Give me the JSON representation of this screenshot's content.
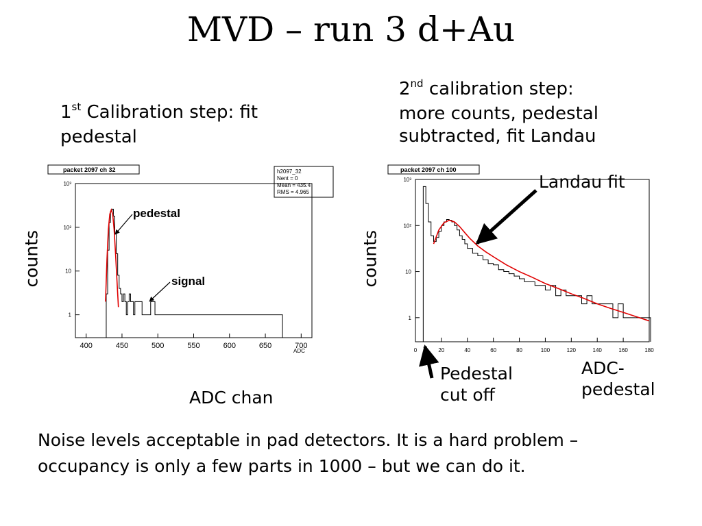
{
  "slide": {
    "title": "MVD – run 3 d+Au",
    "left_caption": {
      "ord": "1",
      "sup": "st",
      "rest_line1": " Calibration step: fit",
      "line2": "pedestal"
    },
    "right_caption": {
      "ord": "2",
      "sup": "nd",
      "rest_line1": " calibration step:",
      "line2": "more counts, pedestal",
      "line3": "subtracted, fit Landau"
    },
    "landau_label": "Landau fit",
    "pedestal_cut_line1": "Pedestal",
    "pedestal_cut_line2": "cut off",
    "adc_ped_line1": "ADC-",
    "adc_ped_line2": "pedestal",
    "adc_chan": "ADC chan",
    "note": "Noise levels acceptable in pad detectors. It is a hard problem – occupancy is only a few parts in 1000 – but we can do it."
  },
  "chart_data": [
    {
      "type": "line",
      "header": "packet 2097 ch 32",
      "stats_box": {
        "name": "h2097_32",
        "entries": "Nent = 0",
        "mean": "Mean = 435.4",
        "rms": "RMS = 4.965"
      },
      "xlabel": "ADC",
      "ylabel": "counts",
      "y_log": true,
      "xlim": [
        385,
        715
      ],
      "ylim": [
        0.3,
        1000
      ],
      "x_ticks": [
        400,
        450,
        500,
        550,
        600,
        650,
        700
      ],
      "y_tick_labels": [
        "1",
        "10",
        "10²",
        "10³"
      ],
      "y_tick_values": [
        1,
        10,
        100,
        1000
      ],
      "annotations": [
        "pedestal",
        "signal"
      ],
      "pedestal_peak": {
        "x": 435,
        "y": 250
      },
      "series": [
        {
          "x": [
            428,
            430,
            432,
            434,
            436,
            438,
            440,
            442,
            444,
            446,
            448,
            450,
            452,
            454,
            456,
            458,
            460,
            462,
            464,
            466,
            468,
            470,
            474,
            478,
            484,
            490,
            496,
            502,
            508,
            514,
            520,
            528,
            536,
            544,
            552,
            560,
            580,
            600,
            624,
            640,
            672
          ],
          "y": [
            3,
            30,
            130,
            230,
            260,
            180,
            70,
            25,
            8,
            4,
            3,
            2,
            3,
            2,
            1,
            2,
            3,
            2,
            2,
            1,
            2,
            2,
            2,
            1,
            1,
            2,
            1,
            1,
            1,
            1,
            1,
            1,
            1,
            1,
            1,
            1,
            1,
            1,
            1,
            1,
            1
          ]
        },
        {
          "name_fit": "gaussian",
          "x": [
            427,
            429,
            431,
            433,
            435,
            437,
            439,
            441,
            443,
            445
          ],
          "y": [
            2,
            18,
            90,
            200,
            250,
            200,
            90,
            25,
            6,
            1.5
          ]
        }
      ]
    },
    {
      "type": "line",
      "header": "packet 2097 ch 100",
      "xlabel": "ADC-pedestal",
      "ylabel": "counts",
      "y_log": true,
      "xlim": [
        0,
        180
      ],
      "ylim": [
        0.3,
        1000
      ],
      "x_ticks": [
        0,
        20,
        40,
        60,
        80,
        100,
        120,
        140,
        160,
        180
      ],
      "y_tick_labels": [
        "1",
        "10",
        "10²",
        "10³"
      ],
      "y_tick_values": [
        1,
        10,
        100,
        1000
      ],
      "series": [
        {
          "x": [
            6,
            8,
            10,
            12,
            14,
            16,
            18,
            20,
            22,
            24,
            26,
            28,
            30,
            32,
            34,
            36,
            38,
            40,
            44,
            48,
            52,
            56,
            60,
            64,
            68,
            72,
            76,
            80,
            84,
            88,
            92,
            96,
            100,
            104,
            108,
            112,
            116,
            120,
            124,
            128,
            132,
            136,
            140,
            144,
            148,
            152,
            156,
            160,
            164,
            168,
            172,
            176,
            180
          ],
          "y": [
            700,
            300,
            120,
            60,
            45,
            55,
            75,
            100,
            120,
            135,
            130,
            120,
            100,
            80,
            60,
            50,
            40,
            32,
            25,
            22,
            18,
            15,
            14,
            11,
            10,
            9,
            8,
            7,
            6,
            6,
            5,
            5,
            4,
            5,
            3,
            4,
            3,
            3,
            3,
            2,
            3,
            2,
            2,
            2,
            2,
            1,
            2,
            1,
            1,
            1,
            1,
            1,
            1
          ]
        },
        {
          "name_fit": "landau",
          "x": [
            14,
            18,
            22,
            26,
            30,
            34,
            38,
            42,
            48,
            54,
            60,
            70,
            80,
            90,
            100,
            110,
            120,
            130,
            140,
            150,
            160,
            170,
            180
          ],
          "y": [
            40,
            80,
            115,
            130,
            120,
            95,
            70,
            52,
            36,
            27,
            21,
            14,
            10,
            7.5,
            5.5,
            4.3,
            3.3,
            2.6,
            2.0,
            1.6,
            1.3,
            1.05,
            0.85
          ]
        }
      ]
    }
  ],
  "colors": {
    "histogram": "#000000",
    "fit": "#e00000",
    "background": "#ffffff"
  }
}
